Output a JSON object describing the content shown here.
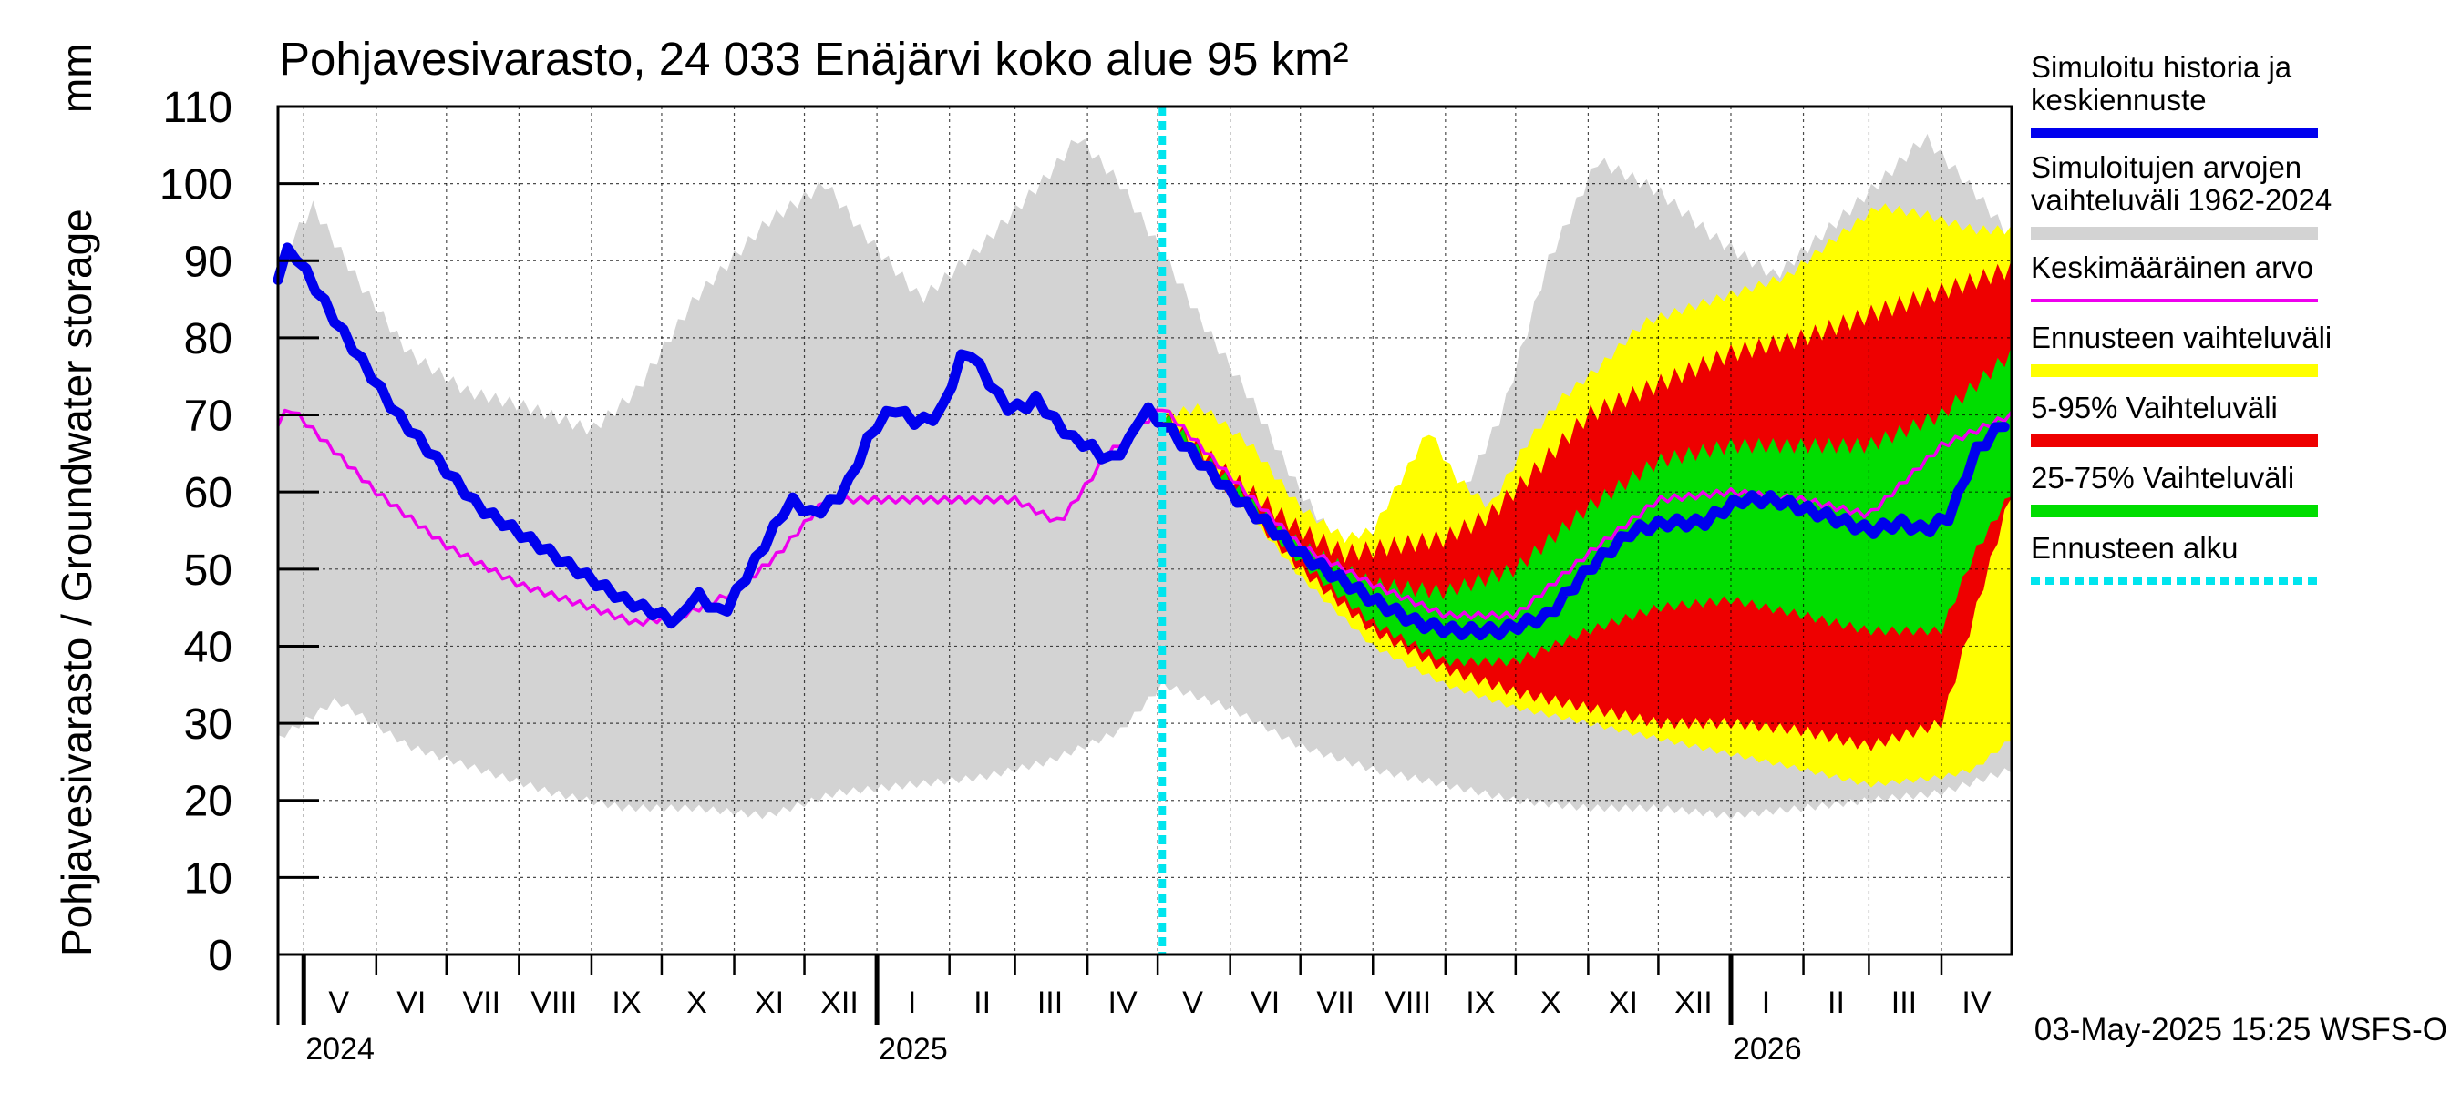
{
  "chart_data": {
    "type": "area",
    "title": "Pohjavesivarasto, 24 033 Enäjärvi koko alue 95 km²",
    "ylabel": "Pohjavesivarasto / Groundwater storage",
    "yunit": "mm",
    "ylim": [
      0,
      110
    ],
    "yticks": [
      0,
      10,
      20,
      30,
      40,
      50,
      60,
      70,
      80,
      90,
      100,
      110
    ],
    "xlim": [
      "2024-04-20",
      "2026-05-01"
    ],
    "grid": true,
    "forecast_start": "2025-05-03",
    "footer": "03-May-2025 15:25 WSFS-O",
    "months": [
      {
        "label": "V",
        "start": "2024-05-01",
        "end": "2024-06-01"
      },
      {
        "label": "VI",
        "start": "2024-06-01",
        "end": "2024-07-01"
      },
      {
        "label": "VII",
        "start": "2024-07-01",
        "end": "2024-08-01"
      },
      {
        "label": "VIII",
        "start": "2024-08-01",
        "end": "2024-09-01"
      },
      {
        "label": "IX",
        "start": "2024-09-01",
        "end": "2024-10-01"
      },
      {
        "label": "X",
        "start": "2024-10-01",
        "end": "2024-11-01"
      },
      {
        "label": "XI",
        "start": "2024-11-01",
        "end": "2024-12-01"
      },
      {
        "label": "XII",
        "start": "2024-12-01",
        "end": "2025-01-01"
      },
      {
        "label": "I",
        "start": "2025-01-01",
        "end": "2025-02-01"
      },
      {
        "label": "II",
        "start": "2025-02-01",
        "end": "2025-03-01"
      },
      {
        "label": "III",
        "start": "2025-03-01",
        "end": "2025-04-01"
      },
      {
        "label": "IV",
        "start": "2025-04-01",
        "end": "2025-05-01"
      },
      {
        "label": "V",
        "start": "2025-05-01",
        "end": "2025-06-01"
      },
      {
        "label": "VI",
        "start": "2025-06-01",
        "end": "2025-07-01"
      },
      {
        "label": "VII",
        "start": "2025-07-01",
        "end": "2025-08-01"
      },
      {
        "label": "VIII",
        "start": "2025-08-01",
        "end": "2025-09-01"
      },
      {
        "label": "IX",
        "start": "2025-09-01",
        "end": "2025-10-01"
      },
      {
        "label": "X",
        "start": "2025-10-01",
        "end": "2025-11-01"
      },
      {
        "label": "XI",
        "start": "2025-11-01",
        "end": "2025-12-01"
      },
      {
        "label": "XII",
        "start": "2025-12-01",
        "end": "2026-01-01"
      },
      {
        "label": "I",
        "start": "2026-01-01",
        "end": "2026-02-01"
      },
      {
        "label": "II",
        "start": "2026-02-01",
        "end": "2026-03-01"
      },
      {
        "label": "III",
        "start": "2026-03-01",
        "end": "2026-04-01"
      },
      {
        "label": "IV",
        "start": "2026-04-01",
        "end": "2026-05-01"
      }
    ],
    "years": [
      {
        "label": "2024",
        "date": "2024-05-01"
      },
      {
        "label": "2025",
        "date": "2025-01-01"
      },
      {
        "label": "2026",
        "date": "2026-01-01"
      }
    ],
    "legend": {
      "placement": "right",
      "entries": [
        {
          "key": "history",
          "label": [
            "Simuloitu historia ja",
            "keskiennuste"
          ],
          "color": "#0000ee",
          "style": "thick-line"
        },
        {
          "key": "range",
          "label": [
            "Simuloitujen arvojen",
            "vaihteluväli 1962-2024"
          ],
          "color": "#d3d3d3",
          "style": "band"
        },
        {
          "key": "mean",
          "label": [
            "Keskimääräinen arvo"
          ],
          "color": "#ee00ee",
          "style": "line"
        },
        {
          "key": "fc_range",
          "label": [
            "Ennusteen vaihteluväli"
          ],
          "color": "#ffff00",
          "style": "band"
        },
        {
          "key": "p5_95",
          "label": [
            "5-95% Vaihteluväli"
          ],
          "color": "#ee0000",
          "style": "band"
        },
        {
          "key": "p25_75",
          "label": [
            "25-75% Vaihteluväli"
          ],
          "color": "#00dd00",
          "style": "band"
        },
        {
          "key": "fc_start",
          "label": [
            "Ennusteen alku"
          ],
          "color": "#00e5ee",
          "style": "dashed"
        }
      ]
    },
    "series": {
      "range_upper": {
        "x": [
          "2024-04-20",
          "2024-05-05",
          "2024-05-25",
          "2024-06-15",
          "2024-07-10",
          "2024-08-05",
          "2024-09-01",
          "2024-09-20",
          "2024-10-15",
          "2024-11-15",
          "2024-12-10",
          "2024-12-25",
          "2025-01-20",
          "2025-02-15",
          "2025-03-15",
          "2025-03-28",
          "2025-04-15",
          "2025-05-03",
          "2025-05-20",
          "2025-06-10",
          "2025-07-01",
          "2025-07-25",
          "2025-08-15",
          "2025-09-05",
          "2025-09-25",
          "2025-10-15",
          "2025-11-05",
          "2025-12-01",
          "2025-12-25",
          "2026-01-20",
          "2026-02-15",
          "2026-03-05",
          "2026-03-25",
          "2026-04-15",
          "2026-05-01"
        ],
        "y": [
          90,
          97,
          87,
          78,
          73,
          71,
          68,
          73,
          85,
          95,
          100,
          94,
          85,
          92,
          101,
          106,
          100,
          91,
          82,
          72,
          60,
          50,
          54,
          58,
          70,
          90,
          103,
          99,
          93,
          88,
          95,
          100,
          106,
          99,
          93
        ]
      },
      "range_lower": {
        "x": [
          "2024-04-20",
          "2024-05-15",
          "2024-06-15",
          "2024-07-15",
          "2024-08-15",
          "2024-09-15",
          "2024-10-15",
          "2024-11-15",
          "2024-12-15",
          "2025-01-15",
          "2025-02-15",
          "2025-03-15",
          "2025-04-15",
          "2025-05-03",
          "2025-06-01",
          "2025-07-01",
          "2025-08-01",
          "2025-09-01",
          "2025-10-01",
          "2025-11-01",
          "2025-12-01",
          "2026-01-01",
          "2026-02-01",
          "2026-03-01",
          "2026-04-01",
          "2026-05-01"
        ],
        "y": [
          28,
          33,
          27,
          24,
          21,
          19,
          19,
          18,
          21,
          22,
          23,
          25,
          29,
          35,
          32,
          27,
          24,
          22,
          20,
          19,
          19,
          18,
          19,
          20,
          21,
          24
        ]
      },
      "fc_upper": {
        "x": [
          "2025-05-03",
          "2025-05-20",
          "2025-06-10",
          "2025-07-01",
          "2025-07-20",
          "2025-08-01",
          "2025-08-10",
          "2025-08-25",
          "2025-09-05",
          "2025-09-20",
          "2025-10-05",
          "2025-10-20",
          "2025-11-05",
          "2025-11-25",
          "2025-12-15",
          "2026-01-05",
          "2026-01-25",
          "2026-02-15",
          "2026-03-05",
          "2026-03-25",
          "2026-04-15",
          "2026-05-01"
        ],
        "y": [
          70,
          71,
          66,
          58,
          54,
          55,
          60,
          68,
          62,
          58,
          66,
          72,
          76,
          82,
          84,
          86,
          88,
          93,
          97,
          96,
          94,
          94
        ]
      },
      "fc_lower": {
        "x": [
          "2025-05-03",
          "2025-06-01",
          "2025-07-01",
          "2025-08-01",
          "2025-09-01",
          "2025-10-01",
          "2025-11-01",
          "2025-12-01",
          "2026-01-01",
          "2026-02-01",
          "2026-03-01",
          "2026-04-01",
          "2026-04-15",
          "2026-05-01"
        ],
        "y": [
          70,
          60,
          49,
          40,
          35,
          32,
          30,
          28,
          26,
          24,
          22,
          23,
          24,
          28
        ]
      },
      "p95": {
        "x": [
          "2025-05-03",
          "2025-06-01",
          "2025-07-01",
          "2025-07-20",
          "2025-08-10",
          "2025-09-01",
          "2025-09-20",
          "2025-10-10",
          "2025-11-01",
          "2025-12-01",
          "2026-01-01",
          "2026-02-01",
          "2026-03-01",
          "2026-04-01",
          "2026-05-01"
        ],
        "y": [
          70,
          62,
          55,
          52,
          53,
          54,
          57,
          63,
          70,
          74,
          78,
          80,
          83,
          86,
          89
        ]
      },
      "p5": {
        "x": [
          "2025-05-03",
          "2025-06-01",
          "2025-07-01",
          "2025-08-01",
          "2025-09-01",
          "2025-10-01",
          "2025-11-01",
          "2025-12-01",
          "2026-01-01",
          "2026-02-01",
          "2026-03-01",
          "2026-04-01",
          "2026-04-15",
          "2026-05-01"
        ],
        "y": [
          69,
          60,
          50,
          42,
          37,
          34,
          32,
          30,
          30,
          29,
          27,
          30,
          44,
          60
        ]
      },
      "p75": {
        "x": [
          "2025-05-03",
          "2025-06-01",
          "2025-07-01",
          "2025-08-01",
          "2025-09-01",
          "2025-10-01",
          "2025-11-01",
          "2025-12-01",
          "2026-01-01",
          "2026-02-01",
          "2026-03-01",
          "2026-04-01",
          "2026-05-01"
        ],
        "y": [
          70,
          61,
          53,
          48,
          47,
          50,
          58,
          64,
          66,
          66,
          66,
          70,
          78
        ]
      },
      "p25": {
        "x": [
          "2025-05-03",
          "2025-06-01",
          "2025-07-01",
          "2025-08-01",
          "2025-09-01",
          "2025-10-01",
          "2025-11-01",
          "2025-12-01",
          "2026-01-01",
          "2026-02-01",
          "2026-03-01",
          "2026-04-01",
          "2026-04-15",
          "2026-05-01"
        ],
        "y": [
          69,
          60,
          51,
          43,
          38,
          38,
          42,
          45,
          46,
          44,
          42,
          42,
          52,
          60
        ]
      },
      "history": {
        "x": [
          "2024-04-20",
          "2024-04-25",
          "2024-05-15",
          "2024-06-10",
          "2024-07-15",
          "2024-08-10",
          "2024-08-25",
          "2024-09-15",
          "2024-10-01",
          "2024-10-08",
          "2024-10-15",
          "2024-10-27",
          "2024-11-08",
          "2024-11-25",
          "2024-12-05",
          "2024-12-18",
          "2024-12-30",
          "2025-01-08",
          "2025-01-18",
          "2025-01-28",
          "2025-02-08",
          "2025-02-25",
          "2025-03-05",
          "2025-03-10",
          "2025-03-25",
          "2025-04-02",
          "2025-04-10",
          "2025-04-18",
          "2025-04-25",
          "2025-05-03"
        ],
        "y": [
          88,
          92,
          82,
          70,
          58,
          53,
          50,
          46,
          44,
          43,
          47,
          44,
          50,
          59,
          57,
          60,
          68,
          71,
          69,
          70,
          79,
          71,
          71,
          72,
          67,
          66,
          64,
          66,
          71,
          69
        ]
      },
      "history_mean_fc": {
        "x": [
          "2025-05-03",
          "2025-06-01",
          "2025-07-01",
          "2025-08-01",
          "2025-08-20",
          "2025-09-05",
          "2025-09-25",
          "2025-10-15",
          "2025-11-01",
          "2025-11-20",
          "2025-12-05",
          "2025-12-20",
          "2026-01-05",
          "2026-01-20",
          "2026-02-10",
          "2026-03-01",
          "2026-03-15",
          "2026-03-25",
          "2026-04-05",
          "2026-04-15",
          "2026-05-01"
        ],
        "y": [
          69,
          60,
          52,
          46,
          43,
          42,
          42,
          44,
          50,
          55,
          56,
          56,
          59,
          59,
          57,
          55,
          56,
          55,
          57,
          65,
          70
        ]
      },
      "mean": {
        "x": [
          "2024-04-20",
          "2024-04-25",
          "2024-06-01",
          "2024-07-01",
          "2024-08-01",
          "2024-09-01",
          "2024-09-20",
          "2024-10-10",
          "2024-11-01",
          "2024-11-20",
          "2024-12-10",
          "2025-01-01",
          "2025-02-01",
          "2025-03-01",
          "2025-03-20",
          "2025-04-10",
          "2025-05-03",
          "2025-06-01",
          "2025-07-01",
          "2025-08-01",
          "2025-09-01",
          "2025-10-01",
          "2025-11-01",
          "2025-12-01",
          "2026-01-01",
          "2026-02-01",
          "2026-03-01",
          "2026-04-01",
          "2026-05-01"
        ],
        "y": [
          69,
          71,
          60,
          53,
          48,
          45,
          43,
          44,
          47,
          52,
          59,
          59,
          59,
          59,
          56,
          65,
          71,
          62,
          53,
          48,
          44,
          44,
          52,
          59,
          60,
          59,
          57,
          66,
          70
        ]
      }
    }
  }
}
